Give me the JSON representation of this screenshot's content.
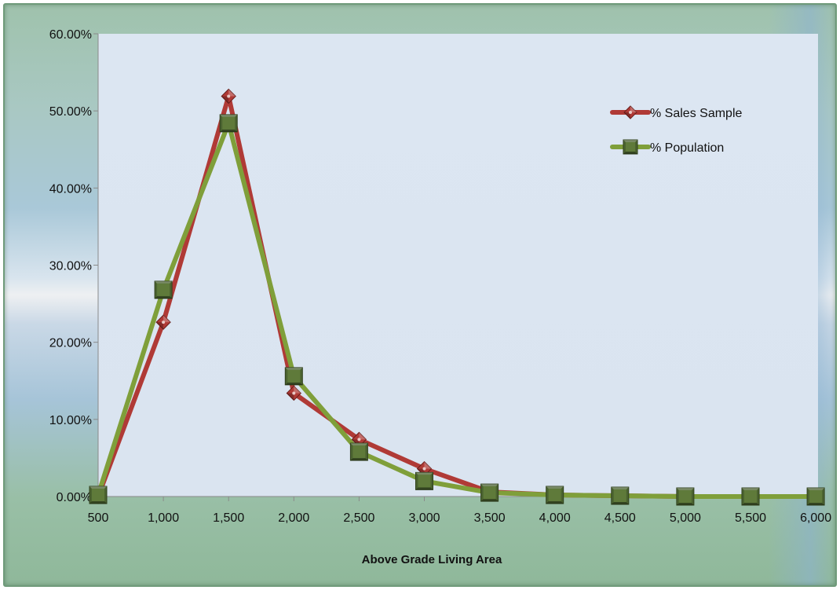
{
  "chart_data": {
    "type": "line",
    "title": "",
    "xlabel": "Above Grade Living Area",
    "ylabel": "",
    "x": [
      500,
      1000,
      1500,
      2000,
      2500,
      3000,
      3500,
      4000,
      4500,
      5000,
      5500,
      6000
    ],
    "x_tick_labels": [
      "500",
      "1,000",
      "1,500",
      "2,000",
      "2,500",
      "3,000",
      "3,500",
      "4,000",
      "4,500",
      "5,000",
      "5,500",
      "6,000"
    ],
    "ylim": [
      0,
      60
    ],
    "y_ticks": [
      0,
      10,
      20,
      30,
      40,
      50,
      60
    ],
    "y_tick_labels": [
      "0.00%",
      "10.00%",
      "20.00%",
      "30.00%",
      "40.00%",
      "50.00%",
      "60.00%"
    ],
    "grid": false,
    "legend_position": "top-right",
    "series": [
      {
        "name": "% Sales Sample",
        "color": "#b03a36",
        "marker": "diamond",
        "values": [
          0.0,
          22.6,
          51.9,
          13.4,
          7.4,
          3.6,
          0.6,
          0.2,
          0.1,
          0.0,
          0.0,
          0.0
        ]
      },
      {
        "name": "% Population",
        "color": "#7f9f3a",
        "marker": "square",
        "values": [
          0.2,
          26.8,
          48.4,
          15.6,
          5.8,
          2.0,
          0.5,
          0.2,
          0.1,
          0.0,
          0.0,
          0.0
        ]
      }
    ]
  }
}
